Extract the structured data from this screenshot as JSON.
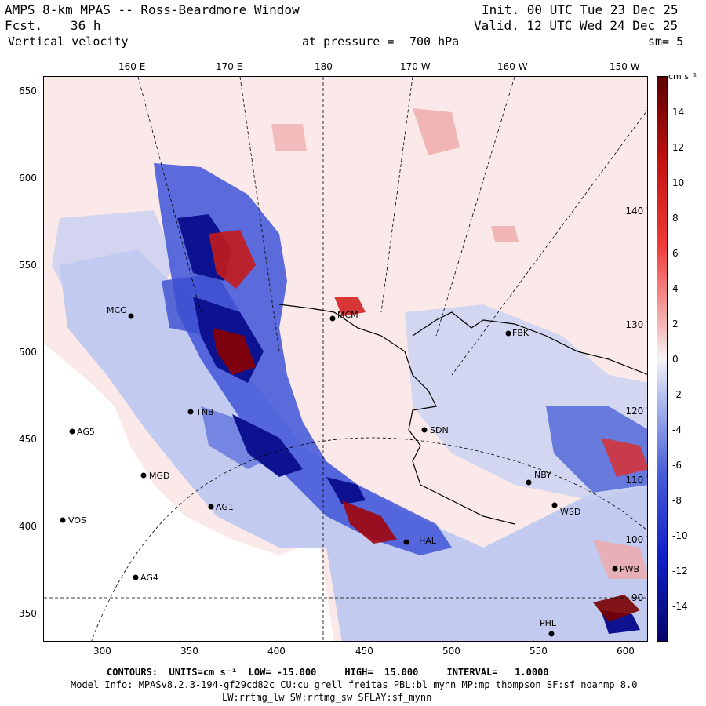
{
  "header": {
    "title": "AMPS 8-km MPAS -- Ross-Beardmore Window",
    "fcst_label": "Fcst.",
    "fcst_value": "36 h",
    "field": "Vertical velocity",
    "pressure_label": "at pressure =",
    "pressure_value": "700 hPa",
    "init": "Init. 00 UTC Tue 23 Dec 25",
    "valid": "Valid. 12 UTC Wed 24 Dec 25",
    "smoothing": "sm= 5"
  },
  "top_ticks": [
    "160 E",
    "170 E",
    "180",
    "170 W",
    "160 W",
    "150 W"
  ],
  "x_ticks": [
    "300",
    "350",
    "400",
    "450",
    "500",
    "550",
    "600"
  ],
  "y_ticks": [
    "650",
    "600",
    "550",
    "500",
    "450",
    "400",
    "350"
  ],
  "colorbar": {
    "units": "cm s⁻¹",
    "labels": [
      "14",
      "12",
      "10",
      "8",
      "6",
      "4",
      "2",
      "0",
      "-2",
      "-4",
      "-6",
      "-8",
      "-10",
      "-12",
      "-14"
    ]
  },
  "map_lon_labels": [
    "140 W",
    "130 W",
    "120 W",
    "110 W",
    "100 W",
    "90 W"
  ],
  "stations": [
    "MCC",
    "MCM",
    "TNB",
    "AG5",
    "MGD",
    "AG1",
    "VOS",
    "AG4",
    "SDN",
    "NBY",
    "WSD",
    "FBK",
    "PHL",
    "PWB",
    "HAL"
  ],
  "footer": {
    "contours": "CONTOURS:  UNITS=cm s⁻¹  LOW= -15.000     HIGH=  15.000     INTERVAL=   1.0000",
    "model_info": "Model Info: MPASv8.2.3-194-gf29cd82c CU:cu_grell_freitas PBL:bl_mynn MP:mp_thompson SF:sf_noahmp 8.0",
    "model_info2": "LW:rrtmg_lw SW:rrtmg_sw SFLAY:sf_mynn"
  },
  "colors": {
    "neg_strong": "#0a0a7a",
    "neg_mid": "#2a3fd0",
    "neg_light": "#a9b6ee",
    "neutral": "#f7efef",
    "pos_light": "#f1b7b7",
    "pos_mid": "#d32020",
    "pos_strong": "#6b0000"
  }
}
